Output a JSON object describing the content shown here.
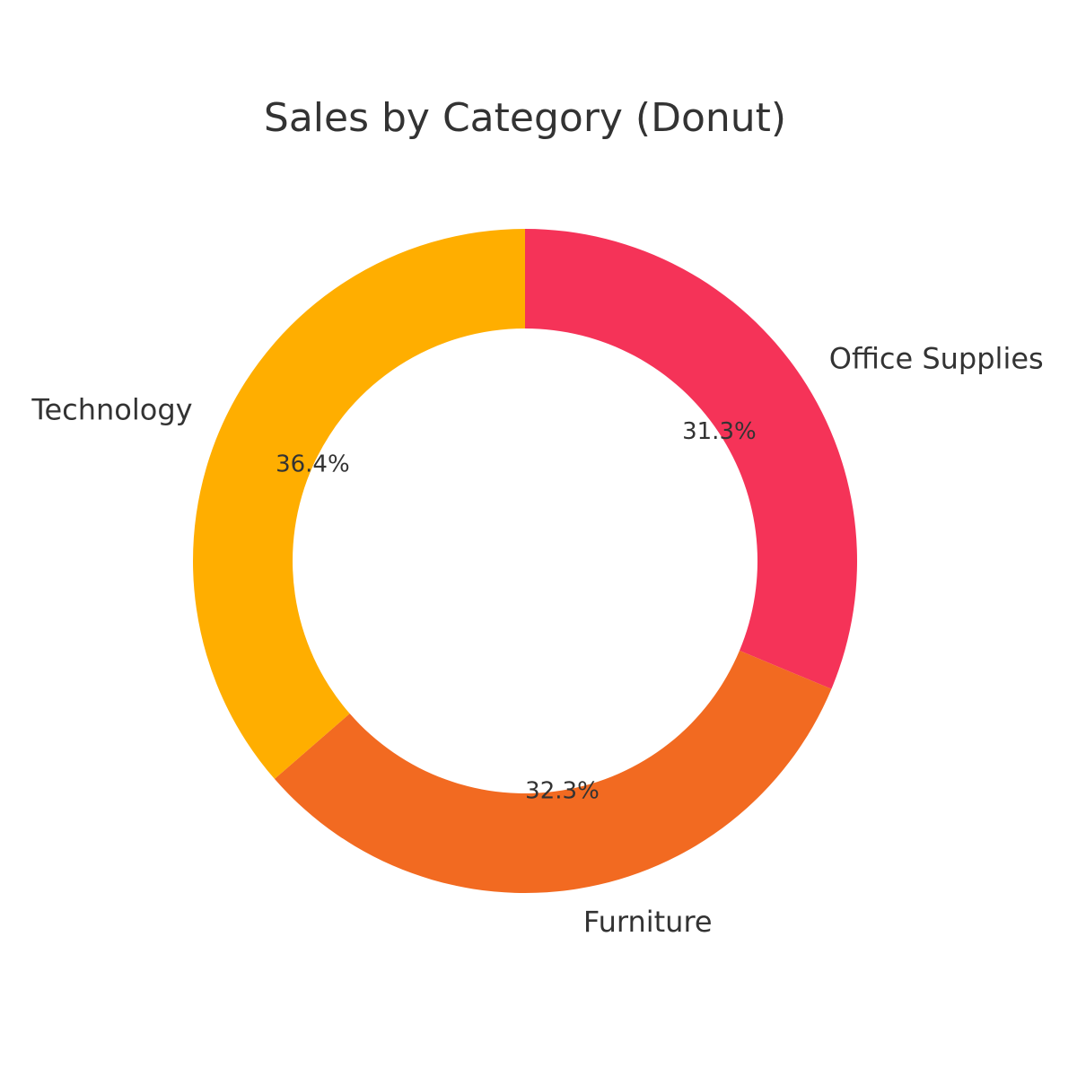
{
  "chart_data": {
    "type": "pie",
    "variant": "donut",
    "title": "Sales by Category (Donut)",
    "labels": [
      "Office Supplies",
      "Furniture",
      "Technology"
    ],
    "values": [
      31.3,
      32.3,
      36.4
    ],
    "value_labels": [
      "31.3%",
      "32.3%",
      "36.4%"
    ],
    "colors": [
      "#f53358",
      "#f26a21",
      "#ffae00"
    ],
    "start": "top",
    "direction": "clockwise",
    "legend": "none"
  }
}
